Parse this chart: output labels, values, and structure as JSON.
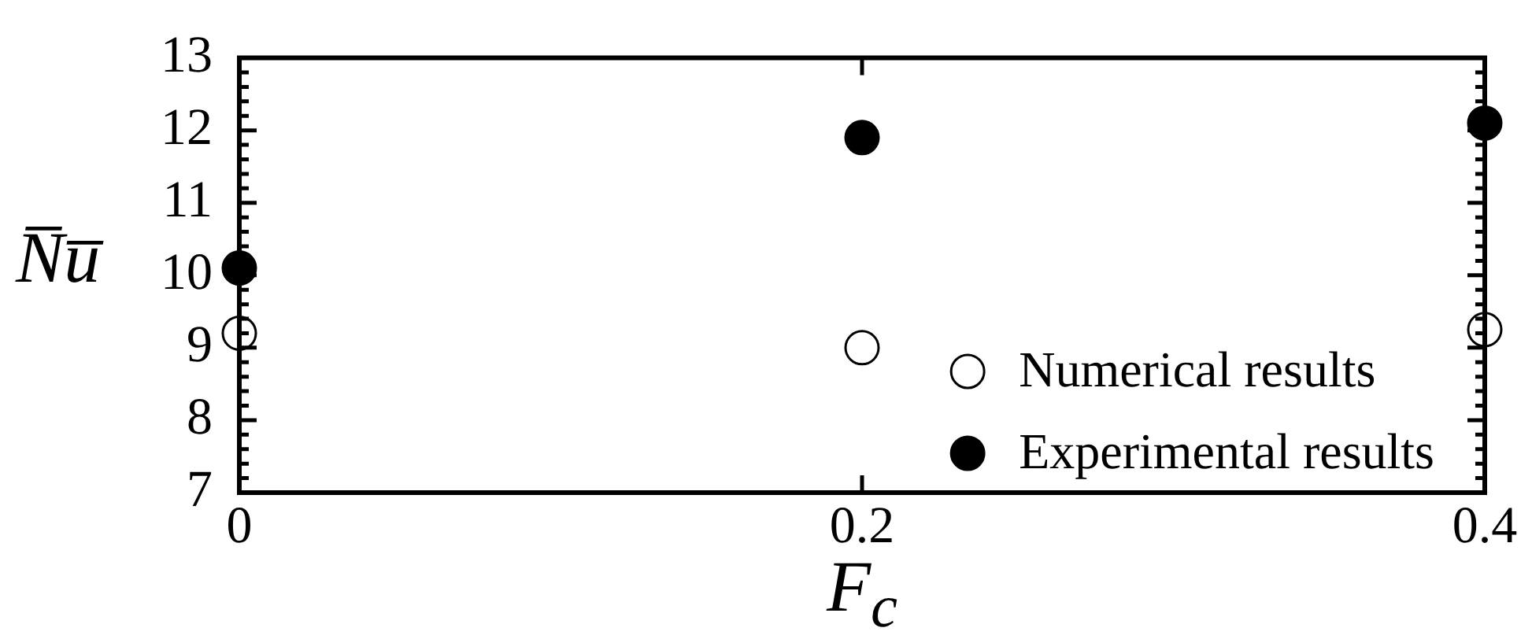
{
  "chart_data": {
    "type": "scatter",
    "xlabel": "F$_{c}$",
    "ylabel": "N̅u̅",
    "x": [
      0,
      0.2,
      0.4
    ],
    "xlim": [
      0,
      0.4
    ],
    "xticks": [
      0,
      0.2,
      0.4
    ],
    "ylim": [
      7,
      13
    ],
    "yticks": [
      7,
      {
        "value": 7.2,
        "label": null
      },
      {
        "value": 7.4,
        "label": null
      },
      {
        "value": 7.6,
        "label": null
      },
      {
        "value": 7.8,
        "label": null
      },
      8,
      {
        "value": 8.2,
        "label": null
      },
      {
        "value": 8.4,
        "label": null
      },
      {
        "value": 8.6,
        "label": null
      },
      {
        "value": 8.8,
        "label": null
      },
      9,
      {
        "value": 9.2,
        "label": null
      },
      {
        "value": 9.4,
        "label": null
      },
      {
        "value": 9.6,
        "label": null
      },
      {
        "value": 9.8,
        "label": null
      },
      10,
      {
        "value": 10.2,
        "label": null
      },
      {
        "value": 10.4,
        "label": null
      },
      {
        "value": 10.6,
        "label": null
      },
      {
        "value": 10.8,
        "label": null
      },
      11,
      {
        "value": 11.2,
        "label": null
      },
      {
        "value": 11.4,
        "label": null
      },
      {
        "value": 11.6,
        "label": null
      },
      {
        "value": 11.8,
        "label": null
      },
      12,
      {
        "value": 12.2,
        "label": null
      },
      {
        "value": 12.4,
        "label": null
      },
      {
        "value": 12.6,
        "label": null
      },
      {
        "value": 12.8,
        "label": null
      },
      13
    ],
    "marker": "circle",
    "legend": "bottom right",
    "series": [
      {
        "name": "Numerical results",
        "color": "#000000",
        "values": [
          9.2,
          9.0,
          9.25
        ]
      },
      {
        "name": "Experimental results",
        "color": "#000000",
        "values": [
          10.1,
          11.9,
          12.1
        ]
      }
    ]
  }
}
